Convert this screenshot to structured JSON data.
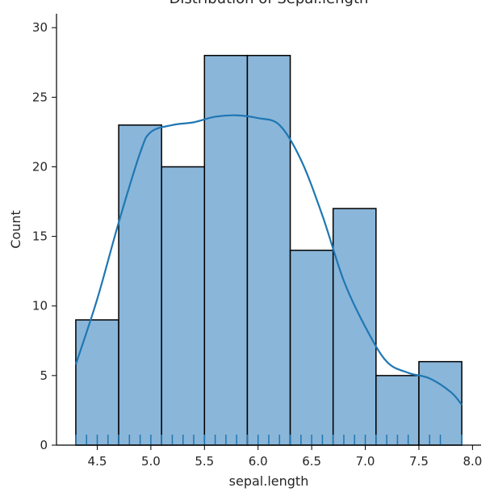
{
  "chart_data": {
    "type": "bar",
    "title": "Distribution of Sepal.length",
    "xlabel": "sepal.length",
    "ylabel": "Count",
    "xlim": [
      4.12,
      8.08
    ],
    "ylim": [
      0,
      31
    ],
    "x_ticks": [
      "4.5",
      "5.0",
      "5.5",
      "6.0",
      "6.5",
      "7.0",
      "7.5",
      "8.0"
    ],
    "y_ticks": [
      "0",
      "5",
      "10",
      "15",
      "20",
      "25",
      "30"
    ],
    "bin_edges": [
      4.3,
      4.7,
      5.1,
      5.5,
      5.9,
      6.3,
      6.7,
      7.1,
      7.5,
      7.9
    ],
    "values": [
      9,
      23,
      20,
      28,
      28,
      14,
      17,
      5,
      6
    ],
    "kde": {
      "x": [
        4.3,
        4.5,
        4.7,
        4.9,
        5.0,
        5.2,
        5.4,
        5.6,
        5.8,
        6.0,
        6.2,
        6.4,
        6.6,
        6.8,
        7.0,
        7.2,
        7.4,
        7.6,
        7.8,
        7.9
      ],
      "y": [
        5.8,
        10.5,
        16.0,
        21.0,
        22.5,
        23.0,
        23.2,
        23.6,
        23.7,
        23.5,
        23.0,
        20.5,
        16.5,
        11.8,
        8.5,
        6.0,
        5.2,
        4.8,
        3.8,
        2.9
      ]
    },
    "rug_x": [
      4.3,
      4.4,
      4.5,
      4.6,
      4.7,
      4.8,
      4.9,
      5.0,
      5.1,
      5.2,
      5.3,
      5.4,
      5.5,
      5.6,
      5.7,
      5.8,
      5.9,
      6.0,
      6.1,
      6.2,
      6.3,
      6.4,
      6.5,
      6.6,
      6.7,
      6.8,
      6.9,
      7.0,
      7.1,
      7.2,
      7.3,
      7.4,
      7.6,
      7.7,
      7.9
    ],
    "colors": {
      "bar": "#8ab6d9",
      "edge": "#000000",
      "kde": "#1f77b4",
      "rug": "#1f77b4"
    },
    "grid": false,
    "legend": "none"
  }
}
